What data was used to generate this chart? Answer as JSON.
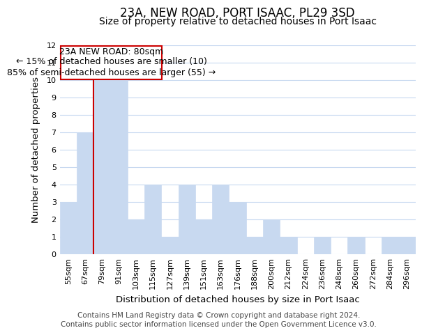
{
  "title": "23A, NEW ROAD, PORT ISAAC, PL29 3SD",
  "subtitle": "Size of property relative to detached houses in Port Isaac",
  "xlabel": "Distribution of detached houses by size in Port Isaac",
  "ylabel": "Number of detached properties",
  "bar_labels": [
    "55sqm",
    "67sqm",
    "79sqm",
    "91sqm",
    "103sqm",
    "115sqm",
    "127sqm",
    "139sqm",
    "151sqm",
    "163sqm",
    "176sqm",
    "188sqm",
    "200sqm",
    "212sqm",
    "224sqm",
    "236sqm",
    "248sqm",
    "260sqm",
    "272sqm",
    "284sqm",
    "296sqm"
  ],
  "bar_heights": [
    3,
    7,
    10,
    10,
    2,
    4,
    1,
    4,
    2,
    4,
    3,
    1,
    2,
    1,
    0,
    1,
    0,
    1,
    0,
    1,
    1
  ],
  "bar_color": "#c8d9f0",
  "highlight_bar_index": 2,
  "highlight_line_color": "#cc0000",
  "ylim": [
    0,
    12
  ],
  "yticks": [
    0,
    1,
    2,
    3,
    4,
    5,
    6,
    7,
    8,
    9,
    10,
    11,
    12
  ],
  "annotation_title": "23A NEW ROAD: 80sqm",
  "annotation_line1": "← 15% of detached houses are smaller (10)",
  "annotation_line2": "85% of semi-detached houses are larger (55) →",
  "footer_line1": "Contains HM Land Registry data © Crown copyright and database right 2024.",
  "footer_line2": "Contains public sector information licensed under the Open Government Licence v3.0.",
  "background_color": "#ffffff",
  "grid_color": "#c8d9f0",
  "title_fontsize": 12,
  "subtitle_fontsize": 10,
  "axis_label_fontsize": 9.5,
  "tick_fontsize": 8,
  "annotation_fontsize": 9,
  "footer_fontsize": 7.5
}
